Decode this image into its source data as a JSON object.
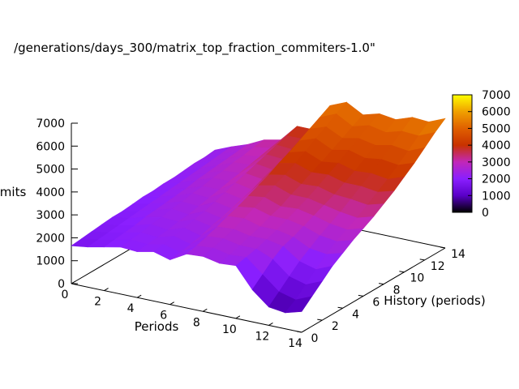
{
  "chart_data": {
    "type": "surface",
    "title": "/generations/days_300/matrix_top_fraction_commiters-1.0\"",
    "xlabel": "Periods",
    "ylabel": "History (periods)",
    "zlabel": "commits",
    "xlim": [
      0,
      14
    ],
    "ylim": [
      0,
      14
    ],
    "zlim": [
      0,
      7000
    ],
    "x_ticks": [
      "0",
      "2",
      "4",
      "6",
      "8",
      "10",
      "12",
      "14"
    ],
    "y_ticks": [
      "0",
      "2",
      "4",
      "6",
      "8",
      "10",
      "12",
      "14"
    ],
    "z_ticks": [
      "0",
      "1000",
      "2000",
      "3000",
      "4000",
      "5000",
      "6000",
      "7000"
    ],
    "colorbar": {
      "ticks": [
        "0",
        "1000",
        "2000",
        "3000",
        "4000",
        "5000",
        "6000",
        "7000"
      ],
      "range": [
        0,
        7000
      ],
      "palette": [
        "#000000",
        "#5a00c8",
        "#8a1fff",
        "#c227b8",
        "#c83200",
        "#e06000",
        "#f0a000",
        "#ffff00"
      ]
    },
    "x": [
      0,
      1,
      2,
      3,
      4,
      5,
      6,
      7,
      8,
      9,
      10,
      11,
      12,
      13,
      14
    ],
    "y": [
      0,
      1,
      2,
      3,
      4,
      5,
      6,
      7,
      8,
      9,
      10,
      11,
      12,
      13,
      14
    ],
    "z": [
      [
        1650,
        1750,
        1900,
        2050,
        2000,
        2150,
        1950,
        2350,
        2400,
        2250,
        2300,
        1400,
        800,
        700,
        900
      ],
      [
        1700,
        1800,
        1950,
        2100,
        2050,
        2200,
        2000,
        2450,
        2500,
        2350,
        2400,
        1800,
        1200,
        1000,
        1300
      ],
      [
        1750,
        1850,
        2000,
        2150,
        2100,
        2300,
        2100,
        2600,
        2650,
        2500,
        2500,
        2200,
        1600,
        1400,
        1700
      ],
      [
        1800,
        1900,
        2050,
        2250,
        2150,
        2400,
        2200,
        2750,
        2800,
        2650,
        2650,
        2500,
        2000,
        1800,
        2100
      ],
      [
        1850,
        1950,
        2150,
        2300,
        2250,
        2500,
        2350,
        2950,
        3000,
        2800,
        2800,
        2650,
        2300,
        2200,
        2400
      ],
      [
        1850,
        2000,
        2200,
        2400,
        2300,
        2600,
        2450,
        3100,
        3200,
        3000,
        3000,
        2850,
        2600,
        2500,
        2700
      ],
      [
        1900,
        2050,
        2250,
        2450,
        2400,
        2750,
        2600,
        3300,
        3400,
        3150,
        3200,
        3050,
        2850,
        2750,
        2950
      ],
      [
        1950,
        2100,
        2300,
        2550,
        2500,
        2900,
        2750,
        3500,
        3650,
        3400,
        3400,
        3250,
        3100,
        3000,
        3200
      ],
      [
        1950,
        2150,
        2350,
        2600,
        2600,
        3050,
        2900,
        3700,
        3850,
        3600,
        3650,
        3450,
        3400,
        3300,
        3500
      ],
      [
        2000,
        2200,
        2450,
        2700,
        2700,
        3200,
        3100,
        3950,
        4100,
        3850,
        3900,
        3700,
        3700,
        3600,
        3800
      ],
      [
        2000,
        2250,
        2500,
        2750,
        2800,
        3350,
        3250,
        4150,
        4350,
        4050,
        4150,
        3950,
        4000,
        3900,
        4150
      ],
      [
        2050,
        2300,
        2550,
        2850,
        2900,
        3500,
        3450,
        4400,
        4650,
        4300,
        4450,
        4250,
        4350,
        4250,
        4500
      ],
      [
        2100,
        2350,
        2600,
        2900,
        3000,
        3650,
        3600,
        4650,
        4900,
        4550,
        4700,
        4550,
        4700,
        4600,
        4900
      ],
      [
        2100,
        2400,
        2650,
        3000,
        3100,
        3800,
        3800,
        4900,
        5200,
        4800,
        5000,
        4850,
        5050,
        5000,
        5300
      ],
      [
        2150,
        2450,
        2700,
        3050,
        3200,
        3950,
        3950,
        5150,
        5450,
        5050,
        5250,
        5150,
        5400,
        5350,
        5650
      ]
    ]
  }
}
